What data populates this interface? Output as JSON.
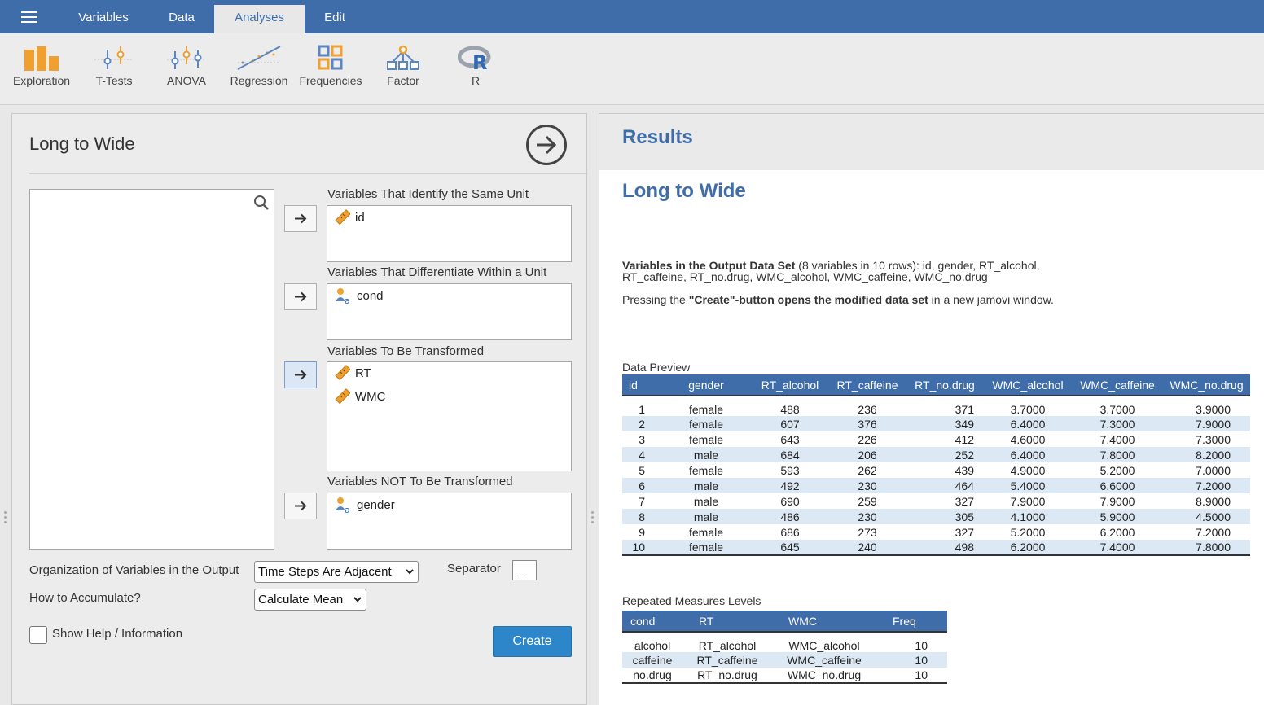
{
  "topbar": {
    "tabs": [
      {
        "label": "Variables"
      },
      {
        "label": "Data"
      },
      {
        "label": "Analyses"
      },
      {
        "label": "Edit"
      }
    ],
    "active_tab": "Analyses"
  },
  "ribbon": {
    "items": [
      {
        "label": "Exploration",
        "icon": "exploration-icon"
      },
      {
        "label": "T-Tests",
        "icon": "t-tests-icon"
      },
      {
        "label": "ANOVA",
        "icon": "anova-icon"
      },
      {
        "label": "Regression",
        "icon": "regression-icon"
      },
      {
        "label": "Frequencies",
        "icon": "frequencies-icon"
      },
      {
        "label": "Factor",
        "icon": "factor-icon"
      },
      {
        "label": "R",
        "icon": "r-icon"
      }
    ]
  },
  "options": {
    "title": "Long to Wide",
    "targets": [
      {
        "label": "Variables That Identify the Same Unit",
        "items": [
          {
            "name": "id",
            "icon": "ruler-icon"
          }
        ]
      },
      {
        "label": "Variables That Differentiate Within a Unit",
        "items": [
          {
            "name": "cond",
            "icon": "nominal-icon"
          }
        ]
      },
      {
        "label": "Variables To Be Transformed",
        "items": [
          {
            "name": "RT",
            "icon": "ruler-icon"
          },
          {
            "name": "WMC",
            "icon": "ruler-icon"
          }
        ]
      },
      {
        "label": "Variables NOT To Be Transformed",
        "items": [
          {
            "name": "gender",
            "icon": "nominal-icon"
          }
        ]
      }
    ],
    "organization_label": "Organization of Variables in the Output",
    "organization_value": "Time Steps Are Adjacent",
    "separator_label": "Separator",
    "separator_value": "_",
    "accumulate_label": "How to Accumulate?",
    "accumulate_value": "Calculate Mean",
    "help_label": "Show Help / Information",
    "help_checked": false,
    "create_label": "Create"
  },
  "results": {
    "header": "Results",
    "title": "Long to Wide",
    "vars_bold": "Variables in the Output Data Set",
    "vars_line1": " (8 variables in 10 rows): id, gender, RT_alcohol,",
    "vars_line2": "RT_caffeine, RT_no.drug, WMC_alcohol, WMC_caffeine, WMC_no.drug",
    "press_pre": "Pressing the ",
    "press_bold": "\"Create\"-button opens the modified data set",
    "press_post": " in a new jamovi window.",
    "preview": {
      "title": "Data Preview",
      "columns": [
        "id",
        "gender",
        "RT_alcohol",
        "RT_caffeine",
        "RT_no.drug",
        "WMC_alcohol",
        "WMC_caffeine",
        "WMC_no.drug"
      ],
      "rows": [
        [
          "1",
          "female",
          "488",
          "236",
          "371",
          "3.7000",
          "3.7000",
          "3.9000"
        ],
        [
          "2",
          "female",
          "607",
          "376",
          "349",
          "6.4000",
          "7.3000",
          "7.9000"
        ],
        [
          "3",
          "female",
          "643",
          "226",
          "412",
          "4.6000",
          "7.4000",
          "7.3000"
        ],
        [
          "4",
          "male",
          "684",
          "206",
          "252",
          "6.4000",
          "7.8000",
          "8.2000"
        ],
        [
          "5",
          "female",
          "593",
          "262",
          "439",
          "4.9000",
          "5.2000",
          "7.0000"
        ],
        [
          "6",
          "male",
          "492",
          "230",
          "464",
          "5.4000",
          "6.6000",
          "7.2000"
        ],
        [
          "7",
          "male",
          "690",
          "259",
          "327",
          "7.9000",
          "7.9000",
          "8.9000"
        ],
        [
          "8",
          "male",
          "486",
          "230",
          "305",
          "4.1000",
          "5.9000",
          "4.5000"
        ],
        [
          "9",
          "female",
          "686",
          "273",
          "327",
          "5.2000",
          "6.2000",
          "7.2000"
        ],
        [
          "10",
          "female",
          "645",
          "240",
          "498",
          "6.2000",
          "7.4000",
          "7.8000"
        ]
      ]
    },
    "levels": {
      "title": "Repeated Measures Levels",
      "columns": [
        "cond",
        "RT",
        "WMC",
        "Freq"
      ],
      "rows": [
        [
          "alcohol",
          "RT_alcohol",
          "WMC_alcohol",
          "10"
        ],
        [
          "caffeine",
          "RT_caffeine",
          "WMC_caffeine",
          "10"
        ],
        [
          "no.drug",
          "RT_no.drug",
          "WMC_no.drug",
          "10"
        ]
      ]
    }
  },
  "colors": {
    "brand": "#3e6da9",
    "accent_orange": "#f0a030",
    "table_stripe": "#dce9f5",
    "create_button": "#2d86c9"
  }
}
